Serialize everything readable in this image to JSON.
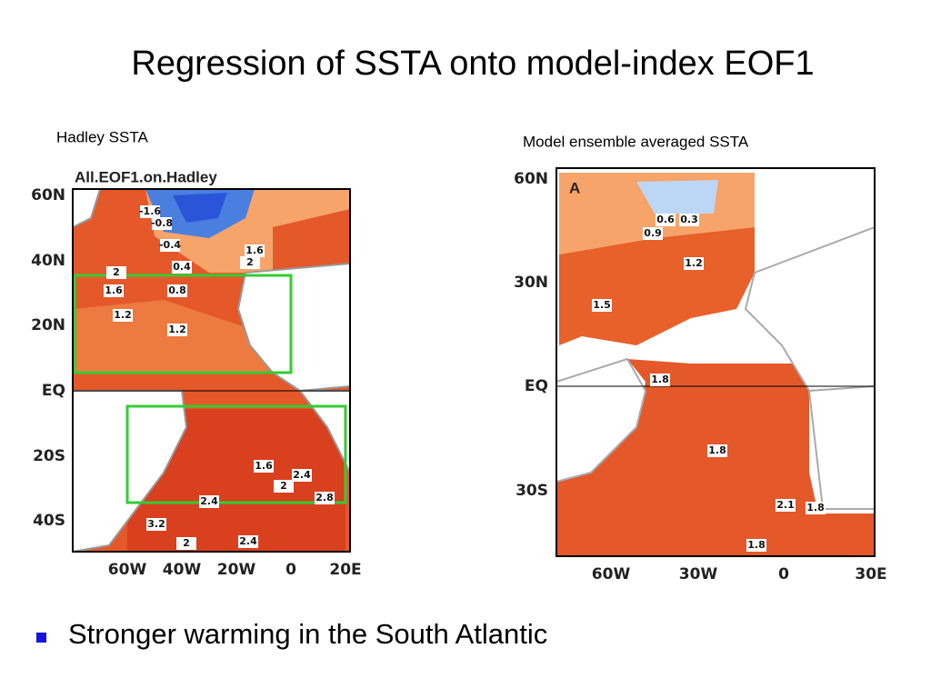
{
  "title": "Regression of SSTA onto model-index EOF1",
  "panels": [
    {
      "caption": "Hadley SSTA",
      "map_title": "All.EOF1.on.Hadley",
      "lat_labels": [
        "60N",
        "40N",
        "20N",
        "EQ",
        "20S",
        "40S"
      ],
      "lon_labels": [
        "60W",
        "40W",
        "20W",
        "0",
        "20E"
      ],
      "contour_labels": [
        "-1.6",
        "-0.8",
        "-0.4",
        "1.6",
        "2",
        "0.4",
        "2",
        "1.6",
        "0.8",
        "1.2",
        "1.2",
        "1.6",
        "2.4",
        "2",
        "2.8",
        "2.4",
        "3.2",
        "2",
        "2.4"
      ]
    },
    {
      "caption": "Model ensemble averaged SSTA",
      "panel_letter": "A",
      "lat_labels": [
        "60N",
        "30N",
        "EQ",
        "30S"
      ],
      "lon_labels": [
        "60W",
        "30W",
        "0",
        "30E"
      ],
      "contour_labels": [
        "0.6",
        "0.3",
        "0.9",
        "1.2",
        "1.5",
        "1.8",
        "1.8",
        "2.1",
        "1.8",
        "1.8"
      ]
    }
  ],
  "bullets": [
    "Stronger warming in the South Atlantic"
  ]
}
